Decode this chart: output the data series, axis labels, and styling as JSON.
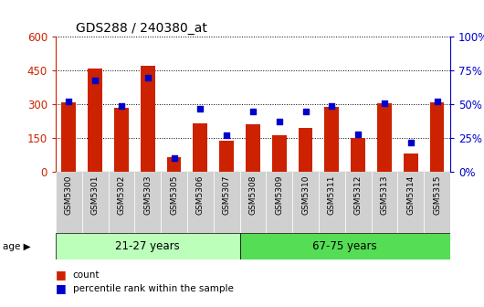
{
  "title": "GDS288 / 240380_at",
  "samples": [
    "GSM5300",
    "GSM5301",
    "GSM5302",
    "GSM5303",
    "GSM5305",
    "GSM5306",
    "GSM5307",
    "GSM5308",
    "GSM5309",
    "GSM5310",
    "GSM5311",
    "GSM5312",
    "GSM5313",
    "GSM5314",
    "GSM5315"
  ],
  "counts": [
    310,
    460,
    285,
    470,
    65,
    215,
    140,
    210,
    165,
    195,
    290,
    150,
    305,
    80,
    310
  ],
  "percentiles": [
    52,
    68,
    49,
    70,
    10,
    47,
    27,
    45,
    37,
    45,
    49,
    28,
    51,
    22,
    52
  ],
  "bar_color": "#cc2200",
  "dot_color": "#0000cc",
  "ylim_left": [
    0,
    600
  ],
  "ylim_right": [
    0,
    100
  ],
  "yticks_left": [
    0,
    150,
    300,
    450,
    600
  ],
  "yticks_right": [
    0,
    25,
    50,
    75,
    100
  ],
  "yticklabels_left": [
    "0",
    "150",
    "300",
    "450",
    "600"
  ],
  "yticklabels_right": [
    "0%",
    "25%",
    "50%",
    "75%",
    "100%"
  ],
  "group1_label": "21-27 years",
  "group2_label": "67-75 years",
  "group1_count": 7,
  "group1_color": "#bbffbb",
  "group2_color": "#55dd55",
  "age_label": "age",
  "legend_count": "count",
  "legend_percentile": "percentile rank within the sample",
  "background_color": "#ffffff",
  "plot_bg_color": "#ffffff",
  "tick_color_left": "#cc2200",
  "tick_color_right": "#0000cc"
}
